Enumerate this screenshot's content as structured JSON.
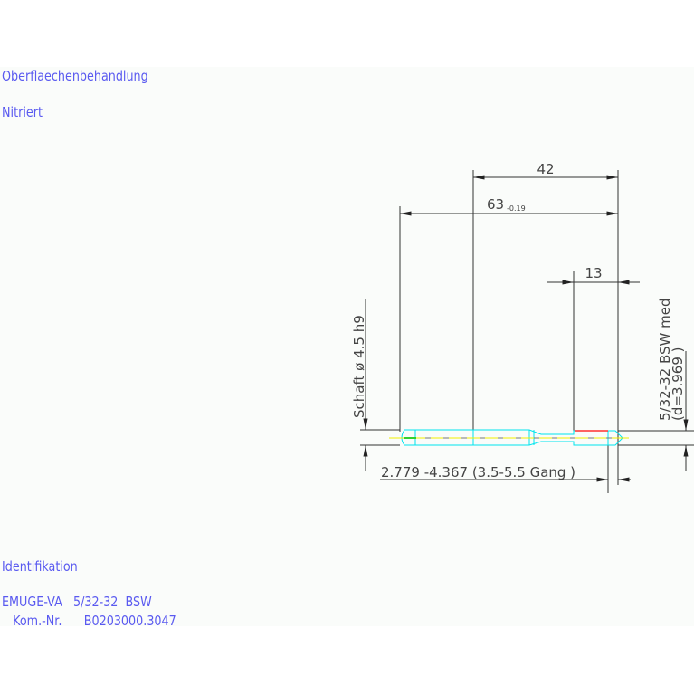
{
  "notes": {
    "surface_label": "Oberflaechenbehandlung",
    "surface_value": "Nitriert",
    "ident_label": "Identifikation",
    "ident_line1": "EMUGE-VA   5/32-32  BSW",
    "ident_line2": "   Kom.-Nr.      B0203000.3047"
  },
  "dimensions": {
    "length_42": "42",
    "length_63": "63",
    "length_63_tol": "-0.19",
    "thread_length": "13",
    "shank": "Schaft  ø 4.5   h9",
    "thread_desig": "5/32-32  BSW  med",
    "thread_d": "(d=3.969 )",
    "chamfer": "2.779  -4.367 (3.5-5.5  Gang   )"
  },
  "colors": {
    "text": "#5a5af0",
    "tool_outline": "#00e5ee",
    "centerline": "#f0f000",
    "thread_mark": "#ff3030",
    "dimension": "#333333"
  }
}
